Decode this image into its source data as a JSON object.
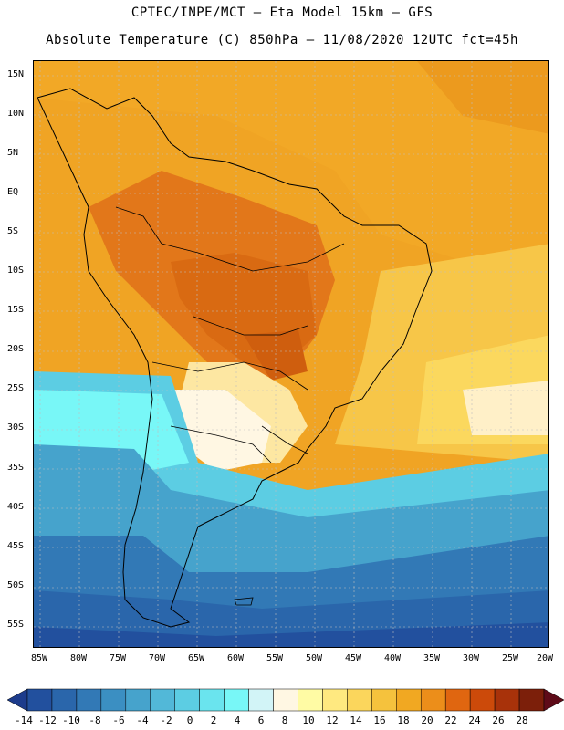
{
  "header": {
    "line1": "CPTEC/INPE/MCT –  Eta Model 15km – GFS",
    "line2": "Absolute Temperature (C) 850hPa – 11/08/2020 12UTC fct=45h"
  },
  "latitude_labels": [
    "15N",
    "10N",
    "5N",
    "EQ",
    "5S",
    "10S",
    "15S",
    "20S",
    "25S",
    "30S",
    "35S",
    "40S",
    "45S",
    "50S",
    "55S"
  ],
  "longitude_labels": [
    "85W",
    "80W",
    "75W",
    "70W",
    "65W",
    "60W",
    "55W",
    "50W",
    "45W",
    "40W",
    "35W",
    "30W",
    "25W",
    "20W"
  ],
  "colorbar": {
    "labels": [
      "-14",
      "-12",
      "-10",
      "-8",
      "-6",
      "-4",
      "-2",
      "0",
      "2",
      "4",
      "6",
      "8",
      "10",
      "12",
      "14",
      "16",
      "18",
      "20",
      "22",
      "24",
      "26",
      "28"
    ],
    "colors": [
      "#1d3c8c",
      "#22509e",
      "#2a66ab",
      "#3279b6",
      "#3b8fc2",
      "#46a3cc",
      "#52b8d8",
      "#5ccde3",
      "#6ae4ee",
      "#78f7f7",
      "#d2f4f7",
      "#fff7e3",
      "#fffba4",
      "#ffe980",
      "#fbd65c",
      "#f5c23d",
      "#f1a822",
      "#ec8e1a",
      "#e06610",
      "#cc4a0a",
      "#a8320a",
      "#7c1f0a",
      "#5e0b18"
    ]
  },
  "map": {
    "region": "South America",
    "field": "Absolute Temperature 850hPa"
  }
}
